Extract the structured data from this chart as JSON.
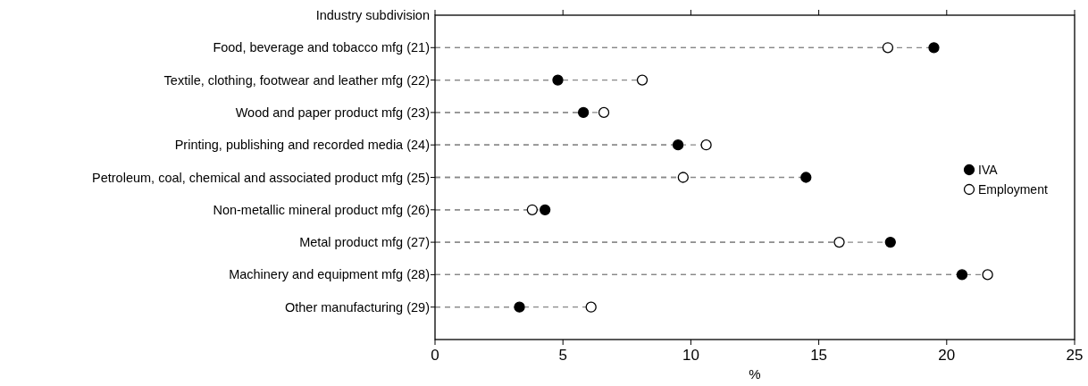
{
  "chart_data": {
    "type": "lollipop",
    "orientation": "horizontal",
    "ylabel": "Industry subdivision",
    "xlabel": "%",
    "categories": [
      "Food, beverage and tobacco mfg (21)",
      "Textile, clothing, footwear and leather mfg (22)",
      "Wood and paper product mfg (23)",
      "Printing, publishing and recorded media (24)",
      "Petroleum, coal, chemical and associated product mfg (25)",
      "Non-metallic mineral product mfg (26)",
      "Metal product mfg (27)",
      "Machinery and equipment mfg (28)",
      "Other manufacturing (29)"
    ],
    "series": [
      {
        "name": "IVA",
        "color": "#000000",
        "values": [
          19.5,
          4.8,
          5.8,
          9.5,
          14.5,
          4.3,
          17.8,
          20.6,
          3.3
        ]
      },
      {
        "name": "Employment",
        "color": "#ffffff",
        "values": [
          17.7,
          8.1,
          6.6,
          10.6,
          9.7,
          3.8,
          15.8,
          21.6,
          6.1
        ]
      }
    ],
    "xlim": [
      0,
      25
    ],
    "xticks": [
      0,
      5,
      10,
      15,
      20,
      25
    ],
    "marker": "circle",
    "line_style": "dashed",
    "legend": "right"
  }
}
